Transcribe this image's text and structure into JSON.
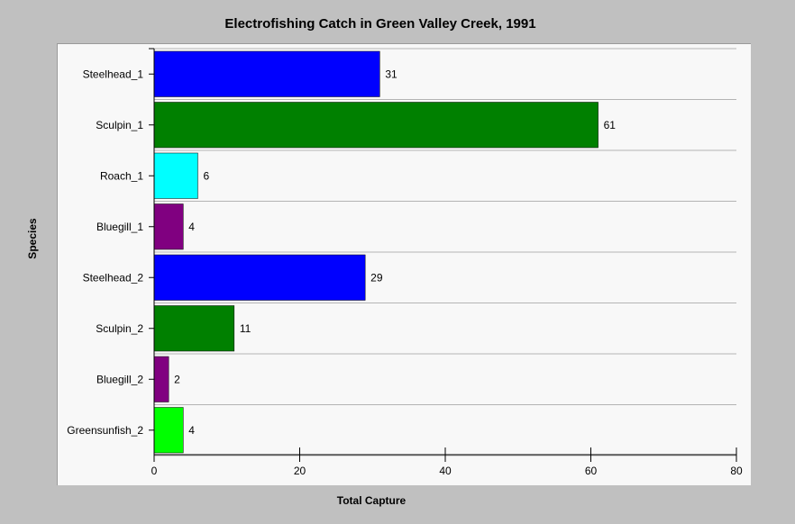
{
  "chart_data": {
    "type": "bar",
    "orientation": "horizontal",
    "title": "Electrofishing Catch in Green Valley Creek, 1991",
    "xlabel": "Total Capture",
    "ylabel": "Species",
    "xlim": [
      0,
      80
    ],
    "xticks": [
      0,
      20,
      40,
      60,
      80
    ],
    "grid": true,
    "categories": [
      "Steelhead_1",
      "Sculpin_1",
      "Roach_1",
      "Bluegill_1",
      "Steelhead_2",
      "Sculpin_2",
      "Bluegill_2",
      "Greensunfish_2"
    ],
    "values": [
      31,
      61,
      6,
      4,
      29,
      11,
      2,
      4
    ],
    "colors": [
      "#0000ff",
      "#008000",
      "#00ffff",
      "#800080",
      "#0000ff",
      "#008000",
      "#800080",
      "#00ff00"
    ]
  }
}
